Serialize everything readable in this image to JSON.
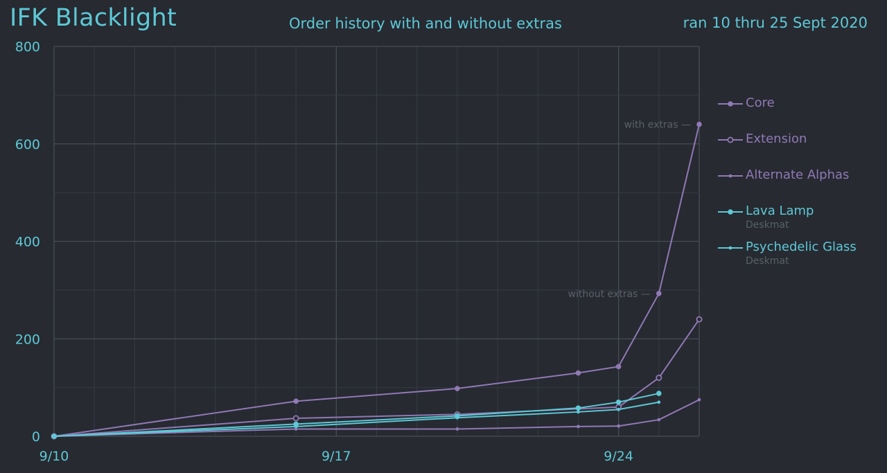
{
  "header": {
    "title": "IFK Blacklight",
    "subtitle": "Order history with and without extras",
    "daterange": "ran 10 thru 25 Sept 2020"
  },
  "colors": {
    "background": "#272a31",
    "grid_major": "#474d56",
    "grid_minor": "#363b43",
    "purple": "#9079b5",
    "cyan": "#5ec8d6",
    "annotation": "#5b6069"
  },
  "chart_data": {
    "type": "line",
    "title": "Order history with and without extras",
    "xlabel": "",
    "ylabel": "",
    "ylim": [
      0,
      800
    ],
    "yticks": [
      0,
      200,
      400,
      600,
      800
    ],
    "xtick_labels": [
      "9/10",
      "9/17",
      "9/24"
    ],
    "xlim": [
      "2020-09-10",
      "2020-09-26"
    ],
    "grid": true,
    "legend_position": "right",
    "series": [
      {
        "name": "Core",
        "color": "#9079b5",
        "marker": "filled",
        "points": [
          [
            "2020-09-10",
            0
          ],
          [
            "2020-09-16",
            72
          ],
          [
            "2020-09-20",
            98
          ],
          [
            "2020-09-23",
            130
          ],
          [
            "2020-09-24",
            143
          ],
          [
            "2020-09-25",
            293
          ],
          [
            "2020-09-26",
            640
          ]
        ]
      },
      {
        "name": "Extension",
        "color": "#9079b5",
        "marker": "hollow",
        "points": [
          [
            "2020-09-10",
            0
          ],
          [
            "2020-09-16",
            37
          ],
          [
            "2020-09-20",
            45
          ],
          [
            "2020-09-24",
            60
          ],
          [
            "2020-09-25",
            120
          ],
          [
            "2020-09-26",
            240
          ]
        ]
      },
      {
        "name": "Alternate Alphas",
        "color": "#9079b5",
        "marker": "small",
        "points": [
          [
            "2020-09-10",
            0
          ],
          [
            "2020-09-16",
            15
          ],
          [
            "2020-09-20",
            15
          ],
          [
            "2020-09-23",
            20
          ],
          [
            "2020-09-24",
            21
          ],
          [
            "2020-09-25",
            34
          ],
          [
            "2020-09-26",
            75
          ]
        ]
      },
      {
        "name": "Lava Lamp",
        "sublabel": "Deskmat",
        "color": "#5ec8d6",
        "marker": "filled",
        "points": [
          [
            "2020-09-10",
            0
          ],
          [
            "2020-09-16",
            25
          ],
          [
            "2020-09-20",
            42
          ],
          [
            "2020-09-23",
            58
          ],
          [
            "2020-09-24",
            70
          ],
          [
            "2020-09-25",
            88
          ]
        ]
      },
      {
        "name": "Psychedelic Glass",
        "sublabel": "Deskmat",
        "color": "#5ec8d6",
        "marker": "small",
        "points": [
          [
            "2020-09-10",
            0
          ],
          [
            "2020-09-16",
            20
          ],
          [
            "2020-09-20",
            38
          ],
          [
            "2020-09-23",
            50
          ],
          [
            "2020-09-24",
            55
          ],
          [
            "2020-09-25",
            70
          ]
        ]
      }
    ],
    "annotations": [
      {
        "text": "with extras —",
        "x": "2020-09-26",
        "y": 640
      },
      {
        "text": "without extras —",
        "x": "2020-09-25",
        "y": 293
      }
    ]
  }
}
